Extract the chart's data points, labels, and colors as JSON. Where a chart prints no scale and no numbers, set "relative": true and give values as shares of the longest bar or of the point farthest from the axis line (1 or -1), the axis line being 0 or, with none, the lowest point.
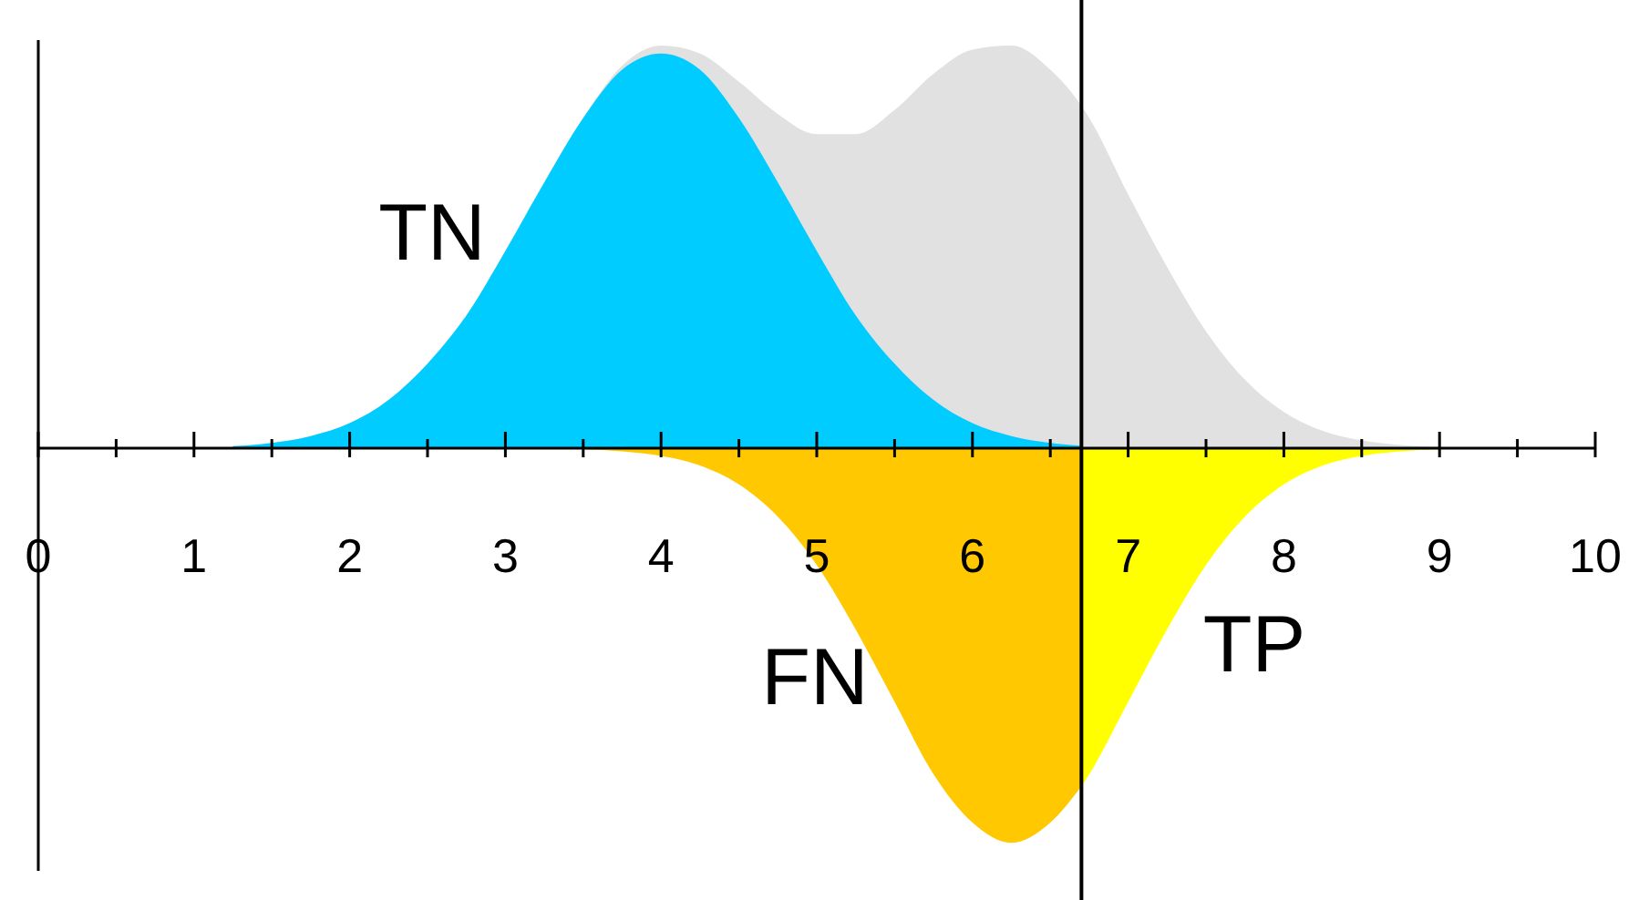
{
  "chart_data": {
    "type": "area",
    "relative": true,
    "tick_labels": "x",
    "grid": false,
    "xlim": [
      0,
      10
    ],
    "xticks": [
      0,
      {
        "value": 0.5,
        "label": null
      },
      1,
      {
        "value": 1.5,
        "label": null
      },
      2,
      {
        "value": 2.5,
        "label": null
      },
      3,
      {
        "value": 3.5,
        "label": null
      },
      4,
      {
        "value": 4.5,
        "label": null
      },
      5,
      {
        "value": 5.5,
        "label": null
      },
      6,
      {
        "value": 6.5,
        "label": null
      },
      7,
      {
        "value": 7.5,
        "label": null
      },
      8,
      {
        "value": 8.5,
        "label": null
      },
      9,
      {
        "value": 9.5,
        "label": null
      },
      10
    ],
    "series": [
      {
        "color": "#e1e1e1",
        "x": [
          1.25,
          1.5,
          1.75,
          2,
          2.25,
          2.5,
          2.75,
          3,
          3.25,
          3.5,
          3.75,
          4,
          4.25,
          4.5,
          4.75,
          5,
          5.25,
          5.5,
          5.75,
          6,
          6.25,
          6.5,
          6.7,
          6.75,
          7,
          7.25,
          7.5,
          7.75,
          8,
          8.25,
          8.5,
          8.75,
          9
        ],
        "values": [
          0.005,
          0.013,
          0.03,
          0.062,
          0.12,
          0.21,
          0.33,
          0.49,
          0.66,
          0.82,
          0.95,
          1.0,
          0.98,
          0.91,
          0.83,
          0.78,
          0.78,
          0.84,
          0.93,
          0.99,
          1.0,
          0.94,
          0.85,
          0.82,
          0.63,
          0.45,
          0.29,
          0.17,
          0.09,
          0.043,
          0.019,
          0.008,
          0.003
        ]
      },
      {
        "color": "#00ccff",
        "x": [
          1.25,
          1.5,
          1.75,
          2,
          2.25,
          2.5,
          2.75,
          3,
          3.25,
          3.5,
          3.75,
          4,
          4.25,
          4.5,
          4.75,
          5,
          5.25,
          5.5,
          5.75,
          6,
          6.25,
          6.5,
          6.7
        ],
        "values": [
          0.005,
          0.013,
          0.03,
          0.062,
          0.12,
          0.21,
          0.33,
          0.49,
          0.66,
          0.82,
          0.94,
          0.98,
          0.94,
          0.82,
          0.66,
          0.49,
          0.33,
          0.21,
          0.12,
          0.062,
          0.03,
          0.013,
          0.006
        ]
      },
      {
        "color": "#ffc800",
        "x": [
          3.5,
          3.75,
          4,
          4.25,
          4.5,
          4.75,
          5,
          5.25,
          5.5,
          5.75,
          6,
          6.25,
          6.5,
          6.7
        ],
        "values": [
          -0.003,
          -0.008,
          -0.019,
          -0.043,
          -0.09,
          -0.17,
          -0.29,
          -0.45,
          -0.63,
          -0.81,
          -0.93,
          -0.98,
          -0.93,
          -0.84
        ]
      },
      {
        "color": "#ffff00",
        "x": [
          6.7,
          6.75,
          7,
          7.25,
          7.5,
          7.75,
          8,
          8.25,
          8.5,
          8.75,
          9
        ],
        "values": [
          -0.84,
          -0.81,
          -0.63,
          -0.45,
          -0.29,
          -0.17,
          -0.09,
          -0.043,
          -0.019,
          -0.008,
          -0.003
        ]
      }
    ],
    "ref_lines": [
      {
        "axis": "x",
        "value": 6.7,
        "color": "#000000"
      }
    ],
    "annotations": [
      "TN",
      "FN",
      "TP"
    ]
  }
}
